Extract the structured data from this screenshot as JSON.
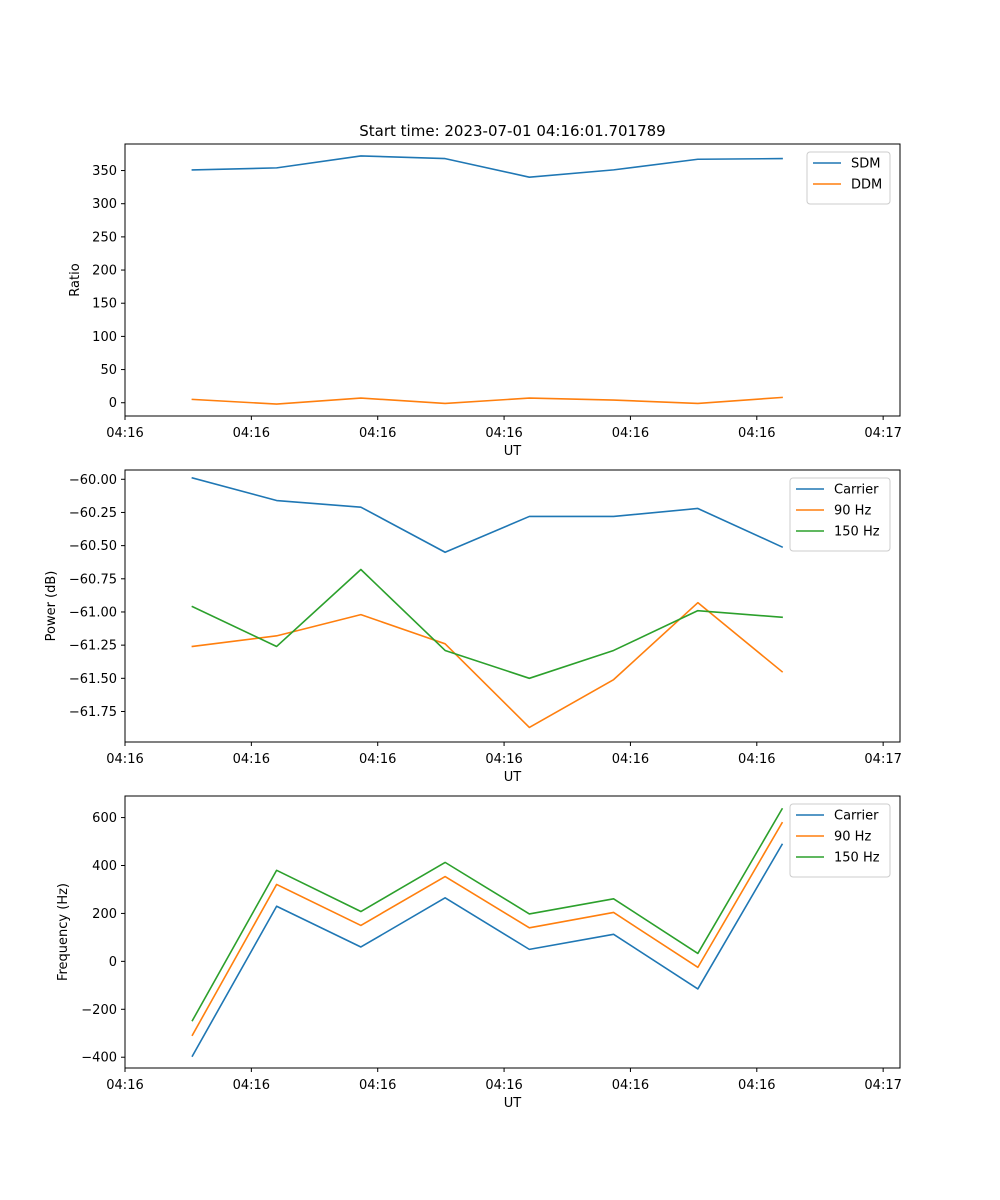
{
  "title": "Start time: 2023-07-01 04:16:01.701789",
  "colors": {
    "blue": "#1f77b4",
    "orange": "#ff7f0e",
    "green": "#2ca02c"
  },
  "chart_data": [
    {
      "type": "line",
      "xlabel": "UT",
      "ylabel": "Ratio",
      "x": [
        1,
        2,
        3,
        4,
        5,
        6,
        7,
        8
      ],
      "xlim": [
        0.2,
        9.4
      ],
      "x_ticks": [
        0.2,
        1.7,
        3.2,
        4.7,
        6.2,
        7.7,
        9.2
      ],
      "x_tick_labels": [
        "04:16",
        "04:16",
        "04:16",
        "04:16",
        "04:16",
        "04:16",
        "04:17"
      ],
      "ylim": [
        -20,
        390
      ],
      "y_ticks": [
        0,
        50,
        100,
        150,
        200,
        250,
        300,
        350
      ],
      "y_tick_labels": [
        "0",
        "50",
        "100",
        "150",
        "200",
        "250",
        "300",
        "350"
      ],
      "legend_position": "top-right",
      "series": [
        {
          "name": "SDM",
          "color": "#1f77b4",
          "values": [
            351,
            354,
            372,
            368,
            340,
            351,
            367,
            368
          ]
        },
        {
          "name": "DDM",
          "color": "#ff7f0e",
          "values": [
            5,
            -2,
            7,
            -1,
            7,
            4,
            -1,
            8
          ]
        }
      ]
    },
    {
      "type": "line",
      "xlabel": "UT",
      "ylabel": "Power (dB)",
      "x": [
        1,
        2,
        3,
        4,
        5,
        6,
        7,
        8
      ],
      "xlim": [
        0.2,
        9.4
      ],
      "x_ticks": [
        0.2,
        1.7,
        3.2,
        4.7,
        6.2,
        7.7,
        9.2
      ],
      "x_tick_labels": [
        "04:16",
        "04:16",
        "04:16",
        "04:16",
        "04:16",
        "04:16",
        "04:17"
      ],
      "ylim": [
        -61.98,
        -59.93
      ],
      "y_ticks": [
        -60.0,
        -60.25,
        -60.5,
        -60.75,
        -61.0,
        -61.25,
        -61.5,
        -61.75
      ],
      "y_tick_labels": [
        "−60.00",
        "−60.25",
        "−60.50",
        "−60.75",
        "−61.00",
        "−61.25",
        "−61.50",
        "−61.75"
      ],
      "legend_position": "top-right",
      "series": [
        {
          "name": "Carrier",
          "color": "#1f77b4",
          "values": [
            -59.99,
            -60.16,
            -60.21,
            -60.55,
            -60.28,
            -60.28,
            -60.22,
            -60.51
          ]
        },
        {
          "name": "90 Hz",
          "color": "#ff7f0e",
          "values": [
            -61.26,
            -61.18,
            -61.02,
            -61.24,
            -61.87,
            -61.51,
            -60.93,
            -61.45
          ]
        },
        {
          "name": "150 Hz",
          "color": "#2ca02c",
          "values": [
            -60.96,
            -61.26,
            -60.68,
            -61.29,
            -61.5,
            -61.29,
            -60.99,
            -61.04
          ]
        }
      ]
    },
    {
      "type": "line",
      "xlabel": "UT",
      "ylabel": "Frequency (Hz)",
      "x": [
        1,
        2,
        3,
        4,
        5,
        6,
        7,
        8
      ],
      "xlim": [
        0.2,
        9.4
      ],
      "x_ticks": [
        0.2,
        1.7,
        3.2,
        4.7,
        6.2,
        7.7,
        9.2
      ],
      "x_tick_labels": [
        "04:16",
        "04:16",
        "04:16",
        "04:16",
        "04:16",
        "04:16",
        "04:17"
      ],
      "ylim": [
        -445,
        690
      ],
      "y_ticks": [
        -400,
        -200,
        0,
        200,
        400,
        600
      ],
      "y_tick_labels": [
        "−400",
        "−200",
        "0",
        "200",
        "400",
        "600"
      ],
      "legend_position": "top-right",
      "series": [
        {
          "name": "Carrier",
          "color": "#1f77b4",
          "values": [
            -395,
            230,
            60,
            265,
            50,
            113,
            -115,
            488
          ]
        },
        {
          "name": "90 Hz",
          "color": "#ff7f0e",
          "values": [
            -308,
            321,
            150,
            354,
            140,
            204,
            -25,
            578
          ]
        },
        {
          "name": "150 Hz",
          "color": "#2ca02c",
          "values": [
            -247,
            380,
            208,
            413,
            198,
            261,
            33,
            636
          ]
        }
      ]
    }
  ]
}
